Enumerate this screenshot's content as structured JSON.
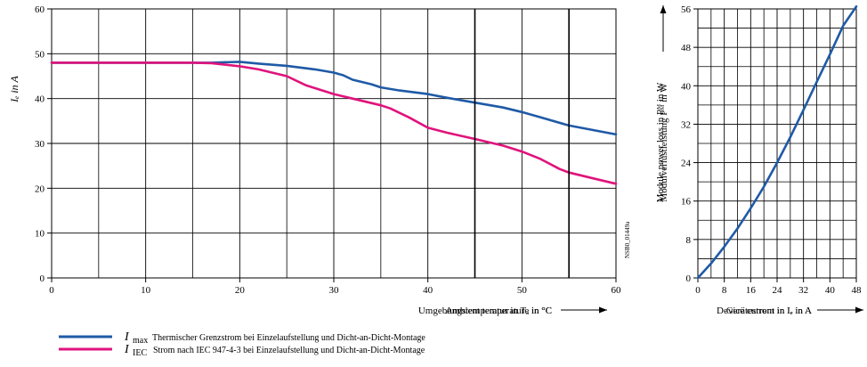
{
  "chart_data": [
    {
      "type": "line",
      "xlabel_lines": [
        "Ambient temperature in °C",
        "Umgebungstemperatur in Tₐ in °C"
      ],
      "ylabel": "Iₑ in A",
      "xlim": [
        0,
        60
      ],
      "ylim": [
        0,
        60
      ],
      "xticks": [
        0,
        10,
        20,
        30,
        40,
        50,
        60
      ],
      "yticks": [
        0,
        10,
        20,
        30,
        40,
        50,
        60
      ],
      "grid": true,
      "side_note": "NSB0_01449a",
      "series": [
        {
          "name": "I max",
          "color": "#1f5aa6",
          "points": [
            [
              0,
              48
            ],
            [
              5,
              48
            ],
            [
              10,
              48
            ],
            [
              15,
              48
            ],
            [
              17,
              48
            ],
            [
              20,
              48.2
            ],
            [
              22,
              47.8
            ],
            [
              25,
              47.3
            ],
            [
              28,
              46.5
            ],
            [
              30,
              45.8
            ],
            [
              31,
              45.2
            ],
            [
              32,
              44.2
            ],
            [
              34,
              43.2
            ],
            [
              35,
              42.5
            ],
            [
              37,
              41.8
            ],
            [
              40,
              41
            ],
            [
              42,
              40.2
            ],
            [
              45,
              39.1
            ],
            [
              48,
              38
            ],
            [
              50,
              37
            ],
            [
              52,
              35.8
            ],
            [
              55,
              34
            ],
            [
              58,
              32.8
            ],
            [
              60,
              32
            ]
          ]
        },
        {
          "name": "I IEC",
          "color": "#e0137c",
          "points": [
            [
              0,
              48
            ],
            [
              5,
              48
            ],
            [
              10,
              48
            ],
            [
              15,
              48
            ],
            [
              17,
              47.9
            ],
            [
              20,
              47.2
            ],
            [
              22,
              46.5
            ],
            [
              25,
              45
            ],
            [
              27,
              43
            ],
            [
              30,
              41
            ],
            [
              32,
              40
            ],
            [
              35,
              38.5
            ],
            [
              36,
              37.8
            ],
            [
              38,
              35.8
            ],
            [
              40,
              33.5
            ],
            [
              42,
              32.4
            ],
            [
              45,
              31
            ],
            [
              48,
              29.5
            ],
            [
              50,
              28.2
            ],
            [
              52,
              26.5
            ],
            [
              54,
              24.3
            ],
            [
              55,
              23.5
            ],
            [
              58,
              22
            ],
            [
              60,
              21
            ]
          ]
        }
      ],
      "legend": [
        {
          "symbol": "I",
          "subscript": "max",
          "text": "Thermischer Grenzstrom bei Einzelaufstellung und Dicht-an-Dicht-Montage"
        },
        {
          "symbol": "I",
          "subscript": "IEC",
          "text": "Strom nach IEC 947-4-3 bei Einzelaufstellung und Dicht-an-Dicht-Montage"
        }
      ]
    },
    {
      "type": "line",
      "xlabel_lines": [
        "Device current in Iₑ in A",
        "Gerätestrom in Iₑ in A"
      ],
      "ylabel_lines": [
        "Module power loss in Pᴹ in W",
        "Modulverlustleistung Pᴹ in W"
      ],
      "xlim": [
        0,
        48
      ],
      "ylim": [
        0,
        56
      ],
      "xticks": [
        0,
        8,
        16,
        24,
        32,
        40,
        48
      ],
      "yticks": [
        0,
        8,
        16,
        24,
        32,
        40,
        48,
        56
      ],
      "grid": true,
      "series": [
        {
          "color": "#1f5aa6",
          "points": [
            [
              0,
              0
            ],
            [
              4,
              3
            ],
            [
              8,
              6.5
            ],
            [
              12,
              10.3
            ],
            [
              16,
              14.5
            ],
            [
              20,
              19
            ],
            [
              24,
              24
            ],
            [
              28,
              29.3
            ],
            [
              32,
              35
            ],
            [
              36,
              40.8
            ],
            [
              40,
              46.5
            ],
            [
              44,
              52.5
            ],
            [
              48,
              56.5
            ]
          ]
        }
      ]
    }
  ]
}
